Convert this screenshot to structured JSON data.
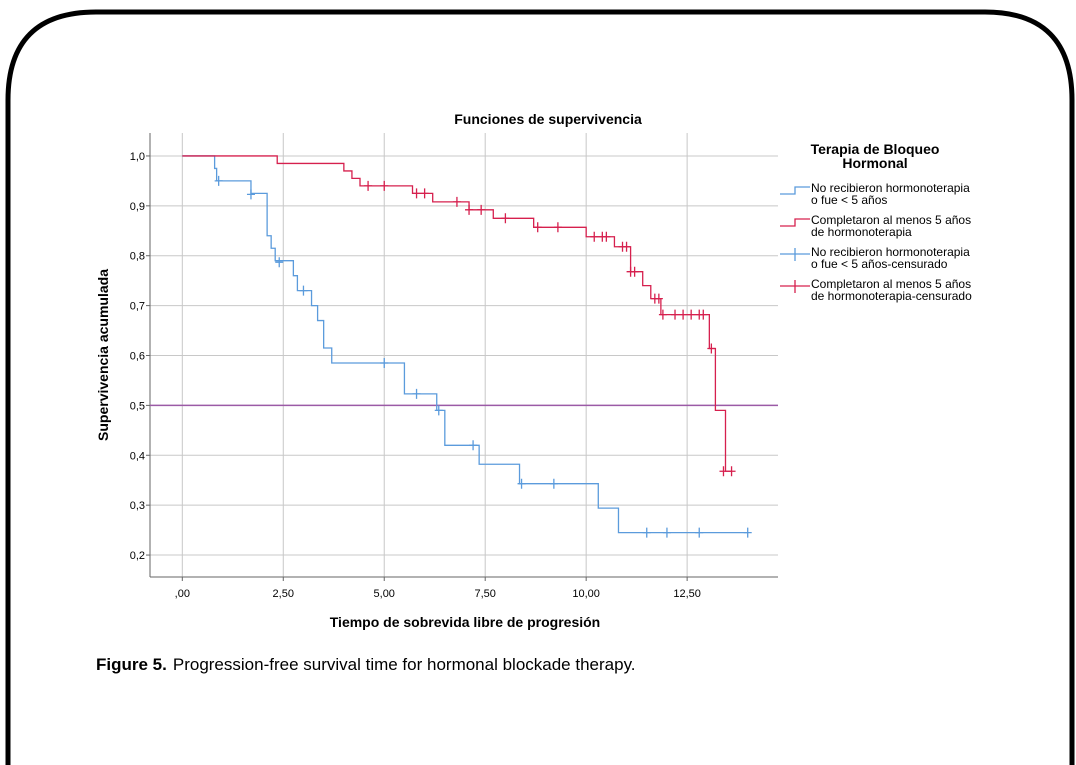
{
  "chart_data": {
    "type": "step",
    "title": "Funciones de supervivencia",
    "x_label": "Tiempo de sobrevida libre de progresión",
    "y_label": "Supervivencia acumulada",
    "legend_title": "Terapia de Bloqueo\nHormonal",
    "legend": "right",
    "grid": true,
    "xlim": [
      -0.8,
      14.75
    ],
    "ylim": [
      0.156,
      1.046
    ],
    "xticks": [
      {
        "value": 0,
        "label": ",00"
      },
      {
        "value": 2.5,
        "label": "2,50"
      },
      {
        "value": 5,
        "label": "5,00"
      },
      {
        "value": 7.5,
        "label": "7,50"
      },
      {
        "value": 10,
        "label": "10,00"
      },
      {
        "value": 12.5,
        "label": "12,50"
      }
    ],
    "yticks": [
      {
        "value": 0.2,
        "label": "0,2"
      },
      {
        "value": 0.3,
        "label": "0,3"
      },
      {
        "value": 0.4,
        "label": "0,4"
      },
      {
        "value": 0.5,
        "label": "0,5"
      },
      {
        "value": 0.6,
        "label": "0,6"
      },
      {
        "value": 0.7,
        "label": "0,7"
      },
      {
        "value": 0.8,
        "label": "0,8"
      },
      {
        "value": 0.9,
        "label": "0,9"
      },
      {
        "value": 1.0,
        "label": "1,0"
      }
    ],
    "reference_line": {
      "value": 0.5,
      "color": "#9b5aa6"
    },
    "series": [
      {
        "name": "No recibieron hormonoterapia\no fue < 5 años",
        "color": "#5b9bdc",
        "style": "step",
        "x": [
          0,
          0.8,
          0.85,
          1.7,
          2.1,
          2.2,
          2.3,
          2.75,
          2.85,
          3.2,
          3.35,
          3.5,
          3.7,
          5.5,
          6.3,
          6.5,
          7.35,
          8.35,
          10.3,
          10.8,
          14.0
        ],
        "values": [
          1.0,
          0.975,
          0.95,
          0.925,
          0.84,
          0.815,
          0.79,
          0.76,
          0.73,
          0.7,
          0.67,
          0.615,
          0.585,
          0.523,
          0.49,
          0.42,
          0.382,
          0.343,
          0.294,
          0.245,
          0.245
        ]
      },
      {
        "name": "Completaron al menos 5 años\nde hormonoterapia",
        "color": "#d6204e",
        "style": "step",
        "x": [
          0,
          2.35,
          4.0,
          4.2,
          4.4,
          5.7,
          6.2,
          7.1,
          7.7,
          8.7,
          10.0,
          10.7,
          11.1,
          11.4,
          11.6,
          11.85,
          13.05,
          13.2,
          13.45,
          13.6
        ],
        "values": [
          1.0,
          0.985,
          0.97,
          0.955,
          0.94,
          0.925,
          0.908,
          0.892,
          0.875,
          0.857,
          0.838,
          0.818,
          0.768,
          0.74,
          0.714,
          0.682,
          0.614,
          0.49,
          0.368,
          0.368
        ]
      },
      {
        "name": "No recibieron hormonoterapia\no fue < 5 años-censurado",
        "color": "#5b9bdc",
        "style": "censor",
        "x": [
          0.9,
          1.7,
          2.4,
          3.0,
          5.0,
          5.8,
          6.35,
          7.2,
          8.4,
          9.2,
          11.5,
          12.0,
          12.8,
          14.0
        ],
        "values": [
          0.95,
          0.923,
          0.787,
          0.73,
          0.585,
          0.523,
          0.49,
          0.42,
          0.343,
          0.343,
          0.245,
          0.245,
          0.245,
          0.245
        ]
      },
      {
        "name": "Completaron al menos 5 años\nde hormonoterapia-censurado",
        "color": "#d6204e",
        "style": "censor",
        "x": [
          4.6,
          5.0,
          5.8,
          6.0,
          6.8,
          7.1,
          7.4,
          8.0,
          8.8,
          9.3,
          10.2,
          10.4,
          10.5,
          10.9,
          11.0,
          11.1,
          11.2,
          11.7,
          11.8,
          11.9,
          12.2,
          12.4,
          12.6,
          12.8,
          12.9,
          13.1,
          13.4,
          13.6
        ],
        "values": [
          0.94,
          0.94,
          0.925,
          0.925,
          0.908,
          0.892,
          0.892,
          0.875,
          0.857,
          0.857,
          0.838,
          0.838,
          0.838,
          0.818,
          0.818,
          0.768,
          0.768,
          0.714,
          0.714,
          0.682,
          0.682,
          0.682,
          0.682,
          0.682,
          0.682,
          0.614,
          0.368,
          0.368
        ]
      }
    ]
  },
  "caption": {
    "label": "Figure 5.",
    "text": "Progression-free survival time for hormonal blockade therapy."
  }
}
